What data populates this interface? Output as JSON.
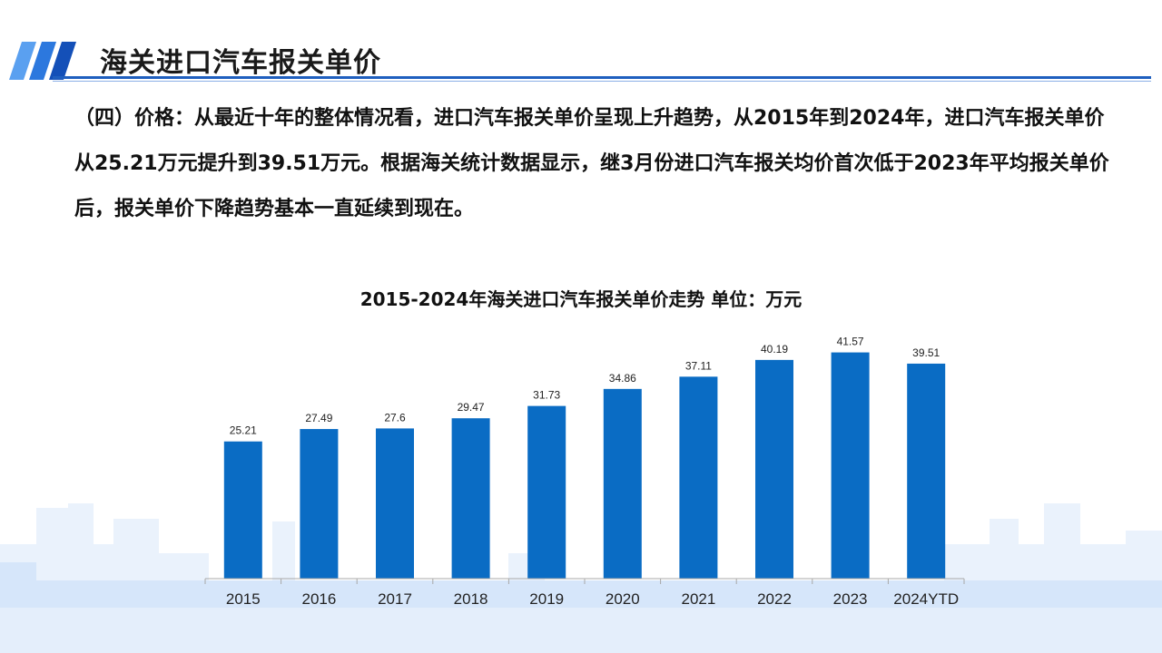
{
  "header": {
    "title": "海关进口汽车报关单价"
  },
  "paragraph": {
    "text": "（四）价格：从最近十年的整体情况看，进口汽车报关单价呈现上升趋势，从2015年到2024年，进口汽车报关单价从25.21万元提升到39.51万元。根据海关统计数据显示，继3月份进口汽车报关均价首次低于2023年平均报关单价后，报关单价下降趋势基本一直延续到现在。"
  },
  "chart_data": {
    "type": "bar",
    "title": "2015-2024年海关进口汽车报关单价走势  单位：万元",
    "categories": [
      "2015",
      "2016",
      "2017",
      "2018",
      "2019",
      "2020",
      "2021",
      "2022",
      "2023",
      "2024YTD"
    ],
    "values": [
      25.21,
      27.49,
      27.6,
      29.47,
      31.73,
      34.86,
      37.11,
      40.19,
      41.57,
      39.51
    ],
    "value_labels": [
      "25.21",
      "27.49",
      "27.6",
      "29.47",
      "31.73",
      "34.86",
      "37.11",
      "40.19",
      "41.57",
      "39.51"
    ],
    "ylim": [
      0,
      45
    ],
    "grid": false,
    "bar_color": "#0a6cc4"
  },
  "colors": {
    "accent": "#1f5fbf",
    "bar": "#0a6cc4"
  }
}
